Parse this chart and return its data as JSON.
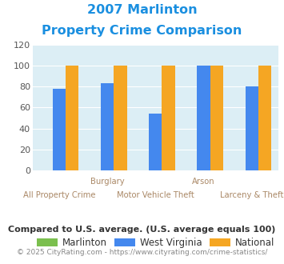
{
  "title_line1": "2007 Marlinton",
  "title_line2": "Property Crime Comparison",
  "categories": [
    "All Property Crime",
    "Burglary",
    "Motor Vehicle Theft",
    "Arson",
    "Larceny & Theft"
  ],
  "marlinton": [
    0,
    0,
    0,
    0,
    0
  ],
  "west_virginia": [
    78,
    83,
    54,
    100,
    80
  ],
  "national": [
    100,
    100,
    100,
    100,
    100
  ],
  "bar_color_marlinton": "#7bbf4e",
  "bar_color_wv": "#4488ee",
  "bar_color_national": "#f5a623",
  "ylim": [
    0,
    120
  ],
  "yticks": [
    0,
    20,
    40,
    60,
    80,
    100,
    120
  ],
  "legend_labels": [
    "Marlinton",
    "West Virginia",
    "National"
  ],
  "footnote1": "Compared to U.S. average. (U.S. average equals 100)",
  "footnote2": "© 2025 CityRating.com - https://www.cityrating.com/crime-statistics/",
  "title_color": "#1a8fe0",
  "footnote1_color": "#333333",
  "footnote2_color": "#888888",
  "bg_color": "#dceef5",
  "bar_width": 0.27,
  "top_labels": {
    "1": "Burglary",
    "3": "Arson"
  },
  "bottom_labels": {
    "0": "All Property Crime",
    "2": "Motor Vehicle Theft",
    "4": "Larceny & Theft"
  },
  "xlabel_color": "#aa8866"
}
